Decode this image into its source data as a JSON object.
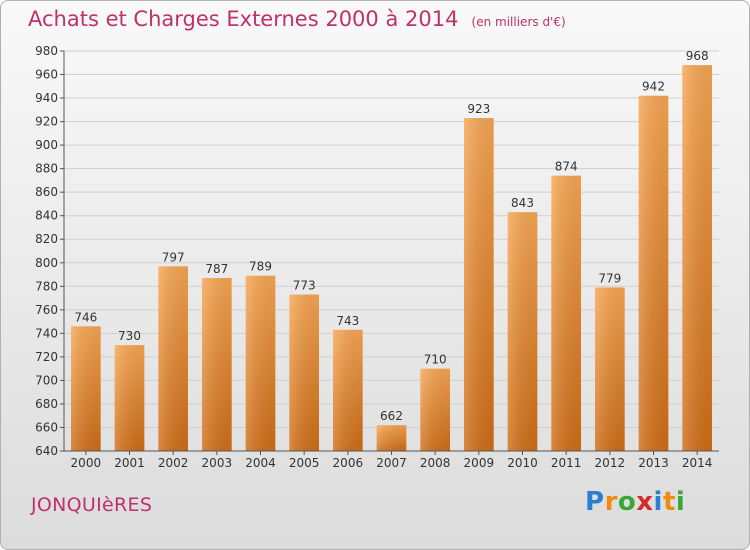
{
  "header": {
    "title": "Achats et Charges Externes 2000 à 2014",
    "subtitle": "(en milliers d'€)"
  },
  "footer": {
    "commune": "JONQUIèRES",
    "brand": {
      "letters": [
        "P",
        "r",
        "o",
        "x",
        "i",
        "t",
        "i"
      ],
      "colors": [
        "#2a7fd0",
        "#f08a10",
        "#3aa63a",
        "#d42a2a",
        "#2a7fd0",
        "#f08a10",
        "#3aa63a"
      ]
    }
  },
  "colors": {
    "bar_light": "#f7a653",
    "bar_dark": "#cf6d16",
    "title": "#c0306a",
    "grid": "#cfcfcf"
  },
  "chart_data": {
    "type": "bar",
    "categories": [
      "2000",
      "2001",
      "2002",
      "2003",
      "2004",
      "2005",
      "2006",
      "2007",
      "2008",
      "2009",
      "2010",
      "2011",
      "2012",
      "2013",
      "2014"
    ],
    "values": [
      746,
      730,
      797,
      787,
      789,
      773,
      743,
      662,
      710,
      923,
      843,
      874,
      779,
      942,
      968
    ],
    "data_labels": [
      "746",
      "730",
      "797",
      "787",
      "789",
      "773",
      "743",
      "662",
      "710",
      "923",
      "843",
      "874",
      "779",
      "942",
      "968"
    ],
    "y_ticks": [
      "640",
      "660",
      "680",
      "700",
      "720",
      "740",
      "760",
      "780",
      "800",
      "820",
      "840",
      "860",
      "880",
      "900",
      "920",
      "940",
      "960",
      "980"
    ],
    "ylim": [
      640,
      980
    ],
    "grid": true,
    "legend": false
  }
}
